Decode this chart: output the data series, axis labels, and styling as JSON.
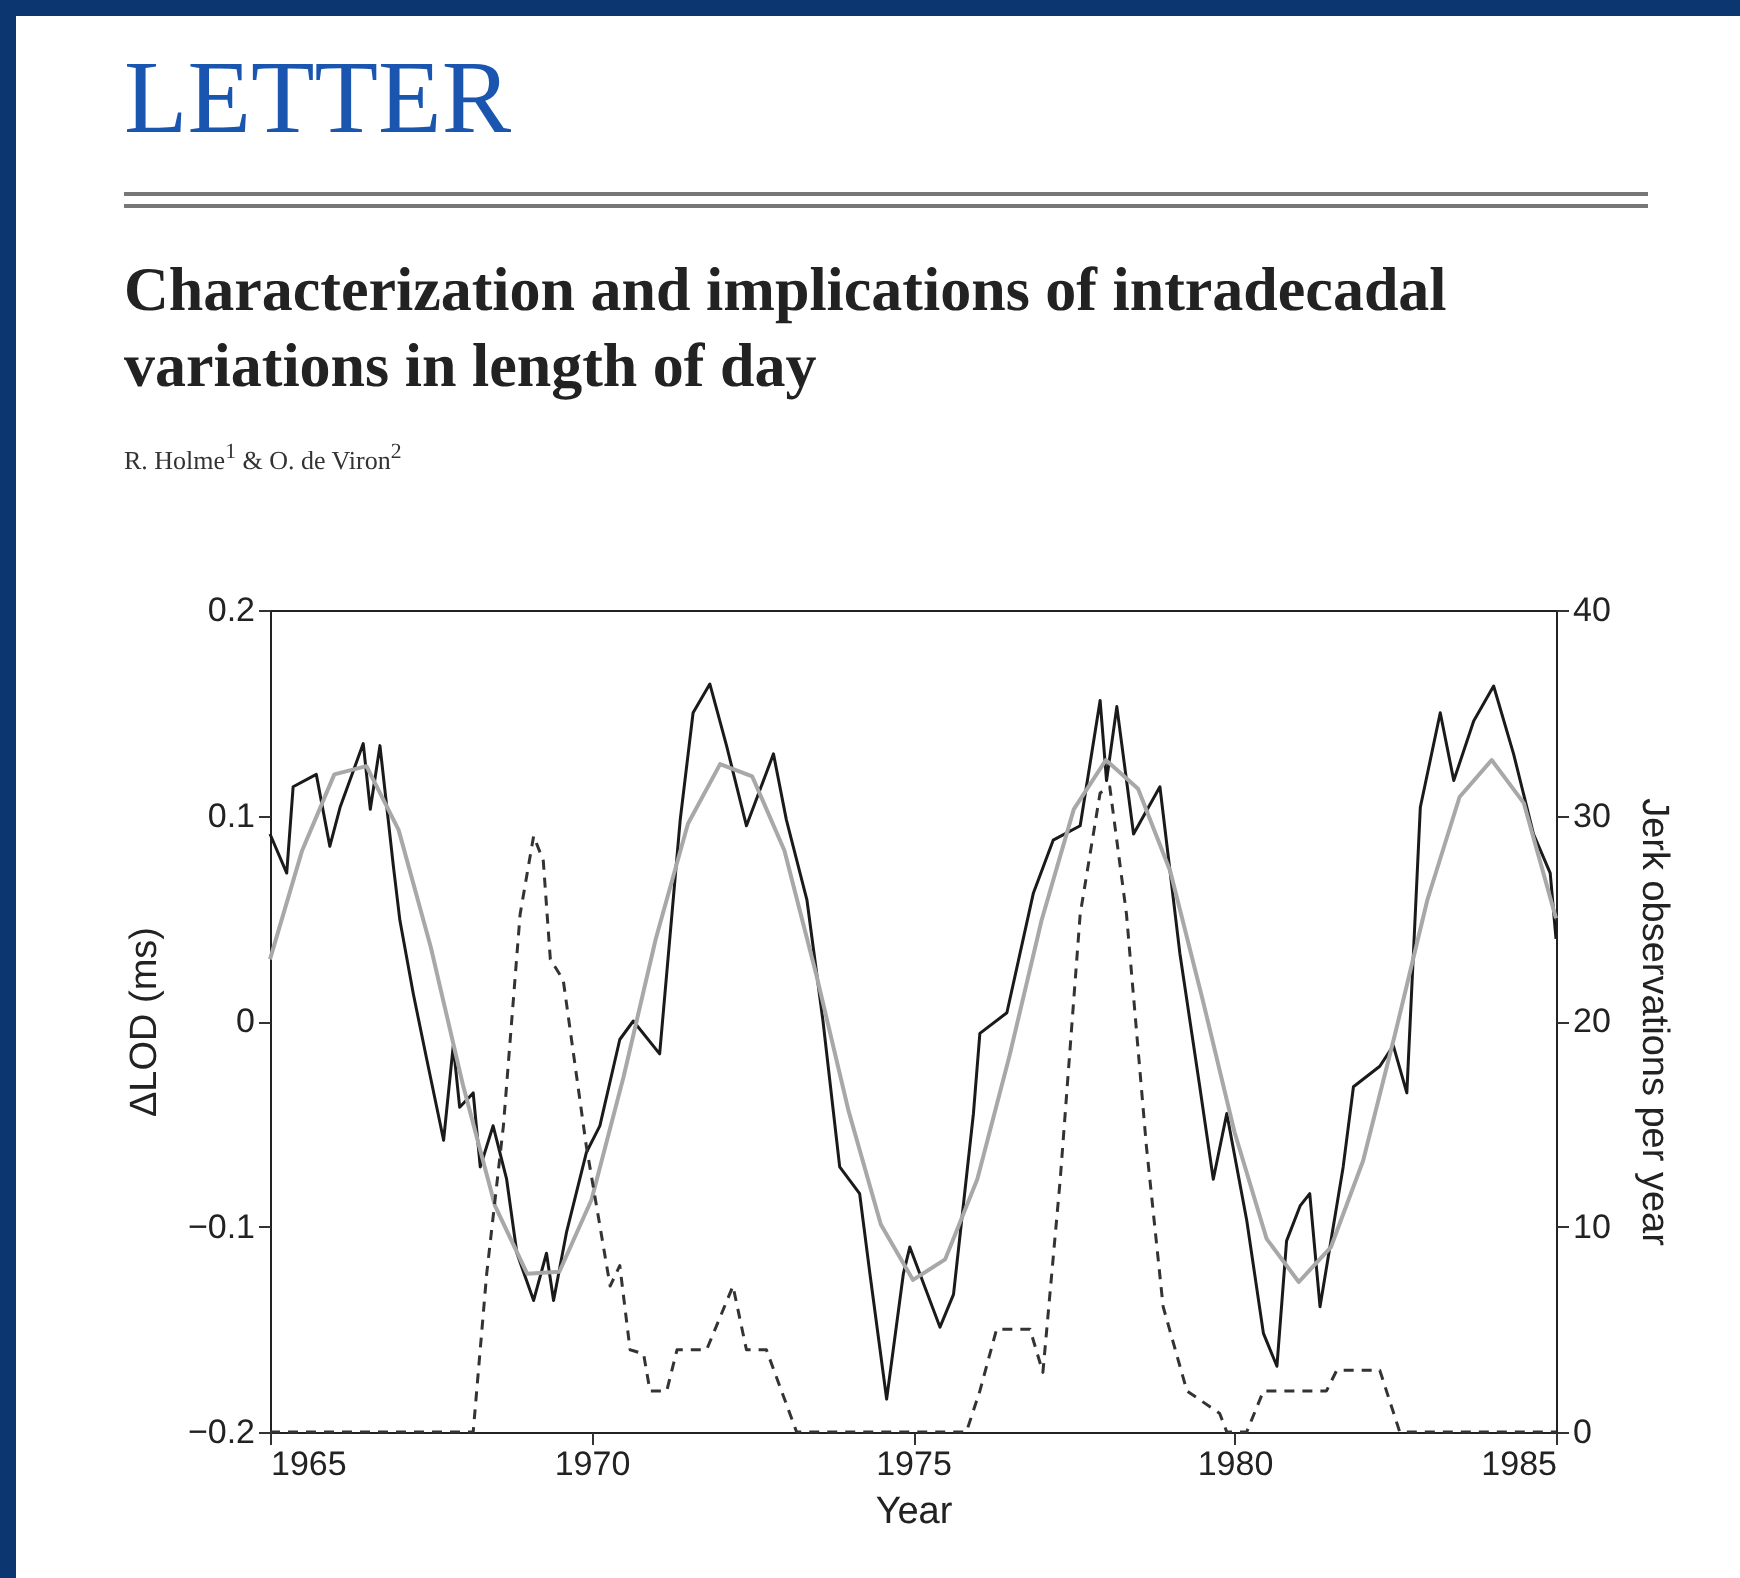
{
  "chart_data": {
    "type": "line",
    "title": "Characterization and implications of intradecadal variations in length of day",
    "subtitle": "R. Holme$^{1}$ & O. de Viron$^{2}$",
    "annotations": [
      "LETTER"
    ],
    "xlabel": "Year",
    "ylabel": "ΔLOD (ms)",
    "y2label": "Jerk observations per year",
    "xlim": [
      1965,
      1985
    ],
    "xticks": [
      1965,
      1970,
      1975,
      1980,
      1985
    ],
    "ylim": [
      -0.2,
      0.2
    ],
    "yticks": [
      {
        "value": -0.2,
        "label": "−0.2"
      },
      {
        "value": -0.1,
        "label": "−0.1"
      },
      0,
      0.1,
      0.2
    ],
    "y2lim": [
      0,
      40
    ],
    "y2ticks": [
      0,
      10,
      20,
      30,
      40
    ],
    "grid": false,
    "marker": "none",
    "series": [
      {
        "color": "#1a1a1a",
        "line_style": "solid",
        "x": [
          1965.0,
          1965.26,
          1965.36,
          1965.72,
          1965.93,
          1966.09,
          1966.45,
          1966.56,
          1966.71,
          1966.92,
          1967.02,
          1967.23,
          1967.44,
          1967.7,
          1967.85,
          1967.95,
          1968.16,
          1968.27,
          1968.47,
          1968.68,
          1968.84,
          1969.1,
          1969.3,
          1969.41,
          1969.61,
          1969.92,
          1970.13,
          1970.44,
          1970.65,
          1971.06,
          1971.38,
          1971.58,
          1971.84,
          1972.1,
          1972.41,
          1972.83,
          1973.03,
          1973.35,
          1973.6,
          1973.86,
          1974.17,
          1974.33,
          1974.59,
          1974.85,
          1974.95,
          1975.42,
          1975.63,
          1975.94,
          1976.04,
          1976.46,
          1976.87,
          1977.18,
          1977.6,
          1977.91,
          1978.01,
          1978.17,
          1978.43,
          1978.84,
          1979.15,
          1979.46,
          1979.67,
          1979.88,
          1980.19,
          1980.45,
          1980.66,
          1980.81,
          1981.02,
          1981.17,
          1981.33,
          1981.69,
          1981.85,
          1982.26,
          1982.47,
          1982.68,
          1982.89,
          1983.2,
          1983.41,
          1983.72,
          1984.03,
          1984.34,
          1984.65,
          1984.91,
          1985.0
        ],
        "values": [
          0.091,
          0.072,
          0.114,
          0.12,
          0.085,
          0.104,
          0.135,
          0.103,
          0.134,
          0.075,
          0.049,
          0.013,
          -0.019,
          -0.058,
          -0.012,
          -0.042,
          -0.035,
          -0.071,
          -0.051,
          -0.077,
          -0.113,
          -0.136,
          -0.113,
          -0.136,
          -0.103,
          -0.064,
          -0.051,
          -0.009,
          0.0,
          -0.016,
          0.098,
          0.15,
          0.164,
          0.134,
          0.095,
          0.13,
          0.098,
          0.059,
          0.0,
          -0.071,
          -0.084,
          -0.123,
          -0.184,
          -0.123,
          -0.11,
          -0.149,
          -0.133,
          -0.045,
          -0.006,
          0.004,
          0.062,
          0.088,
          0.095,
          0.156,
          0.117,
          0.153,
          0.091,
          0.114,
          0.033,
          -0.032,
          -0.077,
          -0.045,
          -0.097,
          -0.152,
          -0.168,
          -0.107,
          -0.09,
          -0.084,
          -0.139,
          -0.071,
          -0.032,
          -0.022,
          -0.012,
          -0.035,
          0.104,
          0.15,
          0.117,
          0.146,
          0.163,
          0.13,
          0.091,
          0.072,
          0.04
        ]
      },
      {
        "color": "#a8a8a8",
        "line_style": "solid",
        "x": [
          1965,
          1965.5,
          1966,
          1966.5,
          1967,
          1967.5,
          1968,
          1968.5,
          1969,
          1969.5,
          1970,
          1970.5,
          1971,
          1971.5,
          1972,
          1972.5,
          1973,
          1973.5,
          1974,
          1974.5,
          1975,
          1975.5,
          1976,
          1976.5,
          1977,
          1977.5,
          1978,
          1978.5,
          1979,
          1979.5,
          1980,
          1980.5,
          1981,
          1981.5,
          1982,
          1982.5,
          1983,
          1983.5,
          1984,
          1984.5,
          1985
        ],
        "values": [
          0.03,
          0.083,
          0.12,
          0.124,
          0.093,
          0.036,
          -0.031,
          -0.09,
          -0.123,
          -0.122,
          -0.087,
          -0.027,
          0.04,
          0.096,
          0.125,
          0.119,
          0.083,
          0.022,
          -0.044,
          -0.099,
          -0.126,
          -0.116,
          -0.077,
          -0.017,
          0.049,
          0.103,
          0.127,
          0.113,
          0.073,
          0.011,
          -0.054,
          -0.106,
          -0.127,
          -0.11,
          -0.068,
          -0.006,
          0.059,
          0.109,
          0.127,
          0.106,
          0.05
        ]
      },
      {
        "color": "#333333",
        "line_style": "dashed",
        "axis": "y2",
        "x": [
          1965,
          1968.16,
          1968.37,
          1968.63,
          1968.89,
          1969.1,
          1969.25,
          1969.36,
          1969.56,
          1969.92,
          1970.29,
          1970.44,
          1970.6,
          1970.81,
          1970.91,
          1971.17,
          1971.33,
          1971.79,
          1972.2,
          1972.41,
          1972.72,
          1973.19,
          1975.83,
          1976.04,
          1976.3,
          1976.82,
          1977.02,
          1977.29,
          1977.6,
          1977.91,
          1978.06,
          1978.32,
          1978.63,
          1978.89,
          1979.26,
          1979.77,
          1979.88,
          1980.19,
          1980.45,
          1981.43,
          1981.59,
          1982.26,
          1982.57,
          1985
        ],
        "values": [
          0,
          0,
          7.7,
          14.9,
          25.2,
          29,
          27.8,
          23,
          22,
          13.9,
          7.1,
          8.1,
          4,
          3.8,
          2,
          2,
          4,
          4,
          7.1,
          4,
          4,
          0,
          0,
          2,
          5,
          5,
          2.9,
          12.3,
          25.2,
          31.1,
          31.4,
          25.2,
          13.9,
          6.1,
          2,
          0.9,
          0,
          0,
          2,
          2,
          3,
          3,
          0,
          0
        ]
      }
    ]
  }
}
